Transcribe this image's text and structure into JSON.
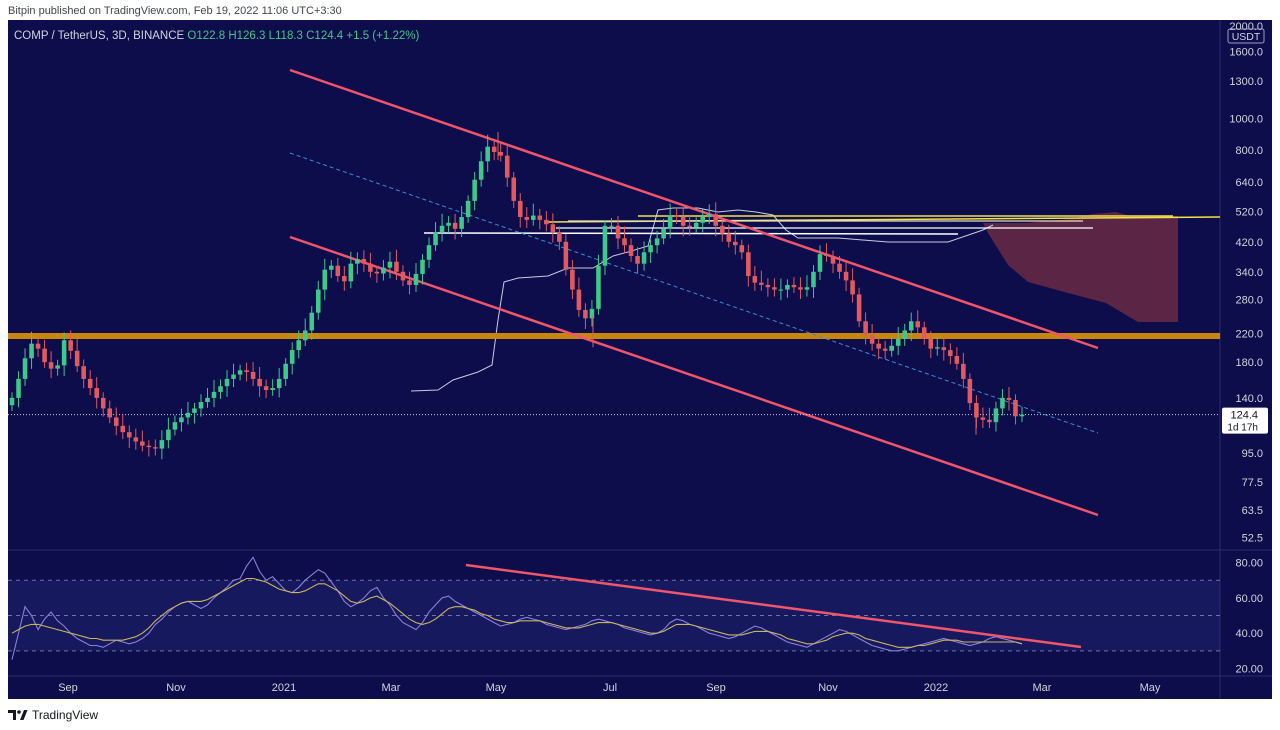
{
  "header": {
    "published_by": "Bitpin published on TradingView.com, Feb 19, 2022 11:06 UTC+3:30"
  },
  "legend": {
    "symbol": "COMP / TetherUS, 3D, BINANCE",
    "open": "O122.8",
    "high": "H126.3",
    "low": "L118.3",
    "close": "C124.4",
    "change": "+1.5 (+1.22%)"
  },
  "footer": {
    "brand": "TradingView"
  },
  "colors": {
    "background": "#0c0d4a",
    "up": "#3ec98a",
    "down": "#e25a5f",
    "channel": "#f0556b",
    "orange_level": "#c8860f",
    "yellow_level": "#f2e24e",
    "white_level": "#ffffff",
    "cloud": "#6a2a45",
    "rsi_line": "#8b7fd8",
    "rsi_ma": "#c9b65c"
  },
  "chart_data": [
    {
      "type": "candlestick",
      "name": "COMP / TetherUS, 3D, BINANCE",
      "scale": "log",
      "currency_label": "USDT",
      "ylim": [
        48,
        2000
      ],
      "y_ticks": [
        "2000.0",
        "1600.0",
        "1300.0",
        "1000.0",
        "800.0",
        "640.0",
        "520.0",
        "420.0",
        "340.0",
        "280.0",
        "220.0",
        "180.0",
        "140.0",
        "95.0",
        "77.5",
        "63.5",
        "52.5"
      ],
      "x_ticks": [
        "Sep",
        "Nov",
        "2021",
        "Mar",
        "May",
        "Jul",
        "Sep",
        "Nov",
        "2022",
        "Mar",
        "May"
      ],
      "last_price": "124.4",
      "countdown": "1d 17h",
      "closes": [
        140,
        160,
        185,
        205,
        198,
        180,
        172,
        176,
        210,
        195,
        175,
        160,
        150,
        140,
        130,
        122,
        115,
        110,
        106,
        103,
        100,
        99,
        98,
        104,
        112,
        118,
        122,
        126,
        130,
        136,
        140,
        146,
        152,
        160,
        165,
        170,
        168,
        160,
        152,
        148,
        150,
        160,
        178,
        196,
        210,
        225,
        255,
        300,
        345,
        355,
        330,
        318,
        360,
        372,
        360,
        340,
        336,
        350,
        365,
        340,
        320,
        310,
        335,
        370,
        410,
        450,
        470,
        480,
        460,
        500,
        560,
        650,
        740,
        820,
        790,
        770,
        660,
        560,
        500,
        490,
        505,
        490,
        475,
        450,
        420,
        345,
        300,
        260,
        245,
        262,
        355,
        470,
        470,
        430,
        410,
        380,
        360,
        390,
        410,
        430,
        460,
        505,
        500,
        470,
        465,
        480,
        500,
        510,
        470,
        445,
        420,
        410,
        390,
        330,
        315,
        310,
        305,
        300,
        300,
        310,
        305,
        300,
        305,
        340,
        385,
        380,
        360,
        340,
        320,
        290,
        240,
        218,
        205,
        198,
        195,
        202,
        212,
        225,
        240,
        230,
        212,
        198,
        200,
        196,
        188,
        178,
        160,
        135,
        122,
        120,
        118,
        130,
        140,
        138,
        123,
        124.4
      ],
      "events": [
        {
          "x": "2021-05-10",
          "y": 910
        },
        {
          "x": "2021-06-22",
          "y": 200
        },
        {
          "x": "2022-01-24",
          "y": 108
        }
      ]
    },
    {
      "type": "line",
      "name": "RSI",
      "ylim": [
        18,
        86
      ],
      "y_ticks": [
        "80.00",
        "60.00",
        "40.00",
        "20.00"
      ],
      "bands": [
        70,
        50,
        30
      ],
      "values": [
        25,
        40,
        55,
        50,
        42,
        48,
        52,
        47,
        44,
        40,
        37,
        35,
        33,
        33,
        32,
        34,
        36,
        35,
        34,
        35,
        37,
        40,
        45,
        48,
        52,
        55,
        57,
        58,
        56,
        54,
        56,
        60,
        63,
        66,
        70,
        71,
        78,
        83,
        75,
        70,
        72,
        68,
        64,
        63,
        66,
        70,
        73,
        76,
        74,
        69,
        64,
        58,
        55,
        57,
        60,
        64,
        66,
        60,
        56,
        50,
        46,
        44,
        42,
        46,
        52,
        56,
        60,
        61,
        58,
        56,
        54,
        52,
        50,
        48,
        46,
        44,
        45,
        46,
        48,
        49,
        48,
        47,
        45,
        44,
        43,
        42,
        43,
        44,
        45,
        47,
        48,
        47,
        46,
        45,
        43,
        42,
        41,
        40,
        39,
        40,
        42,
        46,
        48,
        47,
        45,
        44,
        42,
        40,
        39,
        38,
        37,
        38,
        40,
        42,
        44,
        43,
        41,
        39,
        37,
        35,
        34,
        33,
        32,
        34,
        36,
        38,
        40,
        42,
        41,
        39,
        37,
        35,
        33,
        32,
        31,
        30,
        30,
        31,
        32,
        33,
        34,
        35,
        36,
        37,
        36,
        35,
        34,
        33,
        34,
        35,
        37,
        38,
        37,
        36,
        35,
        34
      ],
      "ma_values": [
        40,
        42,
        44,
        45,
        45,
        44,
        43,
        42,
        41,
        40,
        39,
        38,
        37,
        37,
        36,
        36,
        36,
        36,
        37,
        38,
        40,
        43,
        47,
        50,
        53,
        55,
        57,
        58,
        58,
        58,
        59,
        61,
        63,
        65,
        67,
        69,
        71,
        71,
        70,
        69,
        67,
        65,
        64,
        63,
        63,
        64,
        66,
        68,
        68,
        66,
        64,
        61,
        58,
        57,
        58,
        60,
        61,
        59,
        57,
        54,
        51,
        48,
        46,
        45,
        46,
        48,
        51,
        54,
        55,
        55,
        54,
        53,
        51,
        50,
        48,
        47,
        46,
        46,
        47,
        47,
        47,
        47,
        46,
        45,
        44,
        43,
        43,
        43,
        44,
        45,
        46,
        46,
        46,
        45,
        44,
        43,
        42,
        41,
        40,
        40,
        41,
        43,
        45,
        45,
        45,
        44,
        43,
        42,
        41,
        40,
        39,
        39,
        39,
        40,
        41,
        41,
        41,
        40,
        39,
        37,
        36,
        35,
        34,
        34,
        35,
        36,
        38,
        39,
        40,
        40,
        39,
        37,
        36,
        35,
        34,
        33,
        32,
        32,
        32,
        33,
        33,
        34,
        35,
        36,
        36,
        36,
        35,
        35,
        35,
        35,
        35,
        35,
        35,
        35,
        35,
        34
      ]
    }
  ]
}
